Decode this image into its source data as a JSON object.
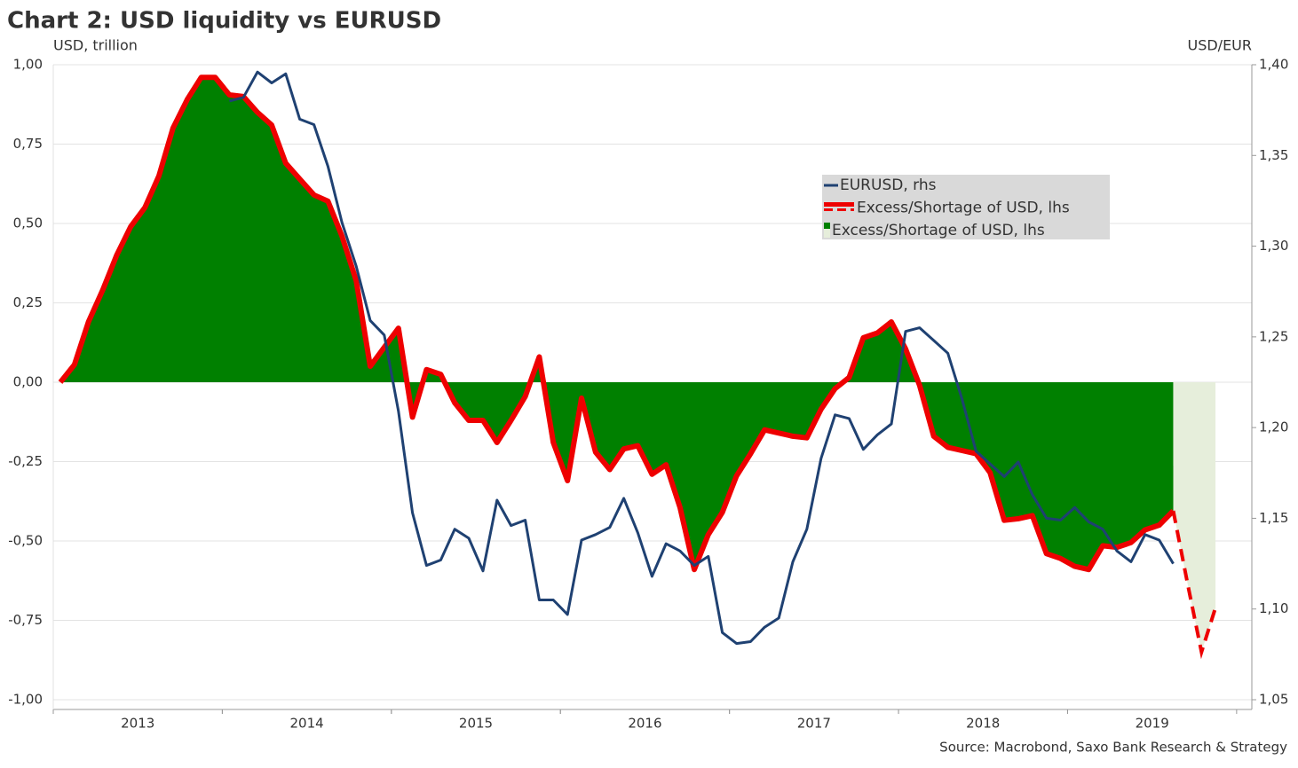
{
  "chart_data": {
    "type": "line",
    "title": "Chart 2: USD liquidity vs EURUSD",
    "y_label": "USD, trillion",
    "y2_label": "USD/EUR",
    "source": "Source: Macrobond, Saxo Bank Research & Strategy",
    "x": [
      2013.042,
      2013.125,
      2013.208,
      2013.292,
      2013.375,
      2013.458,
      2013.542,
      2013.625,
      2013.708,
      2013.792,
      2013.875,
      2013.958,
      2014.042,
      2014.125,
      2014.208,
      2014.292,
      2014.375,
      2014.458,
      2014.542,
      2014.625,
      2014.708,
      2014.792,
      2014.875,
      2014.958,
      2015.042,
      2015.125,
      2015.208,
      2015.292,
      2015.375,
      2015.458,
      2015.542,
      2015.625,
      2015.708,
      2015.792,
      2015.875,
      2015.958,
      2016.042,
      2016.125,
      2016.208,
      2016.292,
      2016.375,
      2016.458,
      2016.542,
      2016.625,
      2016.708,
      2016.792,
      2016.875,
      2016.958,
      2017.042,
      2017.125,
      2017.208,
      2017.292,
      2017.375,
      2017.458,
      2017.542,
      2017.625,
      2017.708,
      2017.792,
      2017.875,
      2017.958,
      2018.042,
      2018.125,
      2018.208,
      2018.292,
      2018.375,
      2018.458,
      2018.542,
      2018.625,
      2018.708,
      2018.792,
      2018.875,
      2018.958,
      2019.042,
      2019.125,
      2019.208,
      2019.292,
      2019.375,
      2019.458,
      2019.542,
      2019.625,
      2019.708,
      2019.792,
      2019.875
    ],
    "xlim": [
      2013,
      2020.09
    ],
    "xticks": [
      {
        "value": 2013.5,
        "label": "2013"
      },
      {
        "value": 2014.5,
        "label": "2014"
      },
      {
        "value": 2015.5,
        "label": "2015"
      },
      {
        "value": 2016.5,
        "label": "2016"
      },
      {
        "value": 2017.5,
        "label": "2017"
      },
      {
        "value": 2018.5,
        "label": "2018"
      },
      {
        "value": 2019.5,
        "label": "2019"
      }
    ],
    "ylim": [
      -1,
      1
    ],
    "yticks": [
      {
        "value": -1,
        "label": "-1,00"
      },
      {
        "value": -0.75,
        "label": "-0,75"
      },
      {
        "value": -0.5,
        "label": "-0,50"
      },
      {
        "value": -0.25,
        "label": "-0,25"
      },
      {
        "value": 0,
        "label": "0,00"
      },
      {
        "value": 0.25,
        "label": "0,25"
      },
      {
        "value": 0.5,
        "label": "0,50"
      },
      {
        "value": 0.75,
        "label": "0,75"
      },
      {
        "value": 1,
        "label": "1,00"
      }
    ],
    "y2lim": [
      1.05,
      1.4
    ],
    "y2ticks": [
      {
        "value": 1.05,
        "label": "1,05"
      },
      {
        "value": 1.1,
        "label": "1,10"
      },
      {
        "value": 1.15,
        "label": "1,15"
      },
      {
        "value": 1.2,
        "label": "1,20"
      },
      {
        "value": 1.25,
        "label": "1,25"
      },
      {
        "value": 1.3,
        "label": "1,30"
      },
      {
        "value": 1.35,
        "label": "1,35"
      },
      {
        "value": 1.4,
        "label": "1,40"
      }
    ],
    "grid": true,
    "series": [
      {
        "name": "EURUSD, rhs",
        "color": "#1f4172",
        "axis": "y2",
        "kind": "line",
        "values": [
          null,
          null,
          null,
          null,
          null,
          null,
          null,
          null,
          null,
          null,
          null,
          null,
          1.38,
          1.382,
          1.396,
          1.39,
          1.395,
          1.37,
          1.367,
          1.344,
          1.313,
          1.289,
          1.259,
          1.251,
          1.209,
          1.153,
          1.124,
          1.127,
          1.144,
          1.139,
          1.121,
          1.16,
          1.146,
          1.149,
          1.105,
          1.105,
          1.097,
          1.138,
          1.141,
          1.145,
          1.161,
          1.142,
          1.118,
          1.136,
          1.132,
          1.124,
          1.129,
          1.087,
          1.081,
          1.082,
          1.09,
          1.095,
          1.126,
          1.144,
          1.183,
          1.207,
          1.205,
          1.188,
          1.196,
          1.202,
          1.253,
          1.255,
          1.248,
          1.241,
          1.216,
          1.187,
          1.18,
          1.173,
          1.181,
          1.163,
          1.15,
          1.149,
          1.156,
          1.148,
          1.144,
          1.132,
          1.126,
          1.141,
          1.138,
          1.125,
          null,
          null,
          null
        ]
      },
      {
        "name": "Excess/Shortage of USD, lhs",
        "color": "#ee0000",
        "kind": "line",
        "forecast_from": 79,
        "values": [
          0,
          0.055,
          0.19,
          0.29,
          0.4,
          0.49,
          0.55,
          0.65,
          0.8,
          0.89,
          0.96,
          0.96,
          0.905,
          0.9,
          0.85,
          0.81,
          0.69,
          0.64,
          0.59,
          0.57,
          0.46,
          0.32,
          0.05,
          0.11,
          0.17,
          -0.11,
          0.04,
          0.025,
          -0.065,
          -0.12,
          -0.12,
          -0.19,
          -0.12,
          -0.045,
          0.08,
          -0.19,
          -0.31,
          -0.05,
          -0.22,
          -0.275,
          -0.21,
          -0.2,
          -0.29,
          -0.26,
          -0.395,
          -0.59,
          -0.48,
          -0.41,
          -0.295,
          -0.225,
          -0.15,
          -0.16,
          -0.17,
          -0.175,
          -0.085,
          -0.02,
          0.015,
          0.14,
          0.155,
          0.19,
          0.105,
          -0.01,
          -0.17,
          -0.205,
          -0.215,
          -0.225,
          -0.285,
          -0.435,
          -0.43,
          -0.42,
          -0.54,
          -0.555,
          -0.58,
          -0.59,
          -0.515,
          -0.52,
          -0.505,
          -0.465,
          -0.45,
          -0.405,
          -0.63,
          -0.85,
          -0.71
        ]
      },
      {
        "name": "Excess/Shortage of USD, lhs",
        "color": "#008000",
        "forecast_color": "#e6eedb",
        "kind": "area",
        "forecast_from": 79,
        "values": [
          0,
          0.055,
          0.19,
          0.29,
          0.4,
          0.49,
          0.55,
          0.65,
          0.8,
          0.89,
          0.96,
          0.96,
          0.905,
          0.9,
          0.85,
          0.81,
          0.69,
          0.64,
          0.59,
          0.57,
          0.46,
          0.32,
          0.05,
          0.11,
          0.17,
          -0.11,
          0.04,
          0.025,
          -0.065,
          -0.12,
          -0.12,
          -0.19,
          -0.12,
          -0.045,
          0.08,
          -0.19,
          -0.31,
          -0.05,
          -0.22,
          -0.275,
          -0.21,
          -0.2,
          -0.29,
          -0.26,
          -0.395,
          -0.59,
          -0.48,
          -0.41,
          -0.295,
          -0.225,
          -0.15,
          -0.16,
          -0.17,
          -0.175,
          -0.085,
          -0.02,
          0.015,
          0.14,
          0.155,
          0.19,
          0.105,
          -0.01,
          -0.17,
          -0.205,
          -0.215,
          -0.225,
          -0.285,
          -0.435,
          -0.43,
          -0.42,
          -0.54,
          -0.555,
          -0.58,
          -0.59,
          -0.515,
          -0.52,
          -0.505,
          -0.465,
          -0.45,
          -0.405,
          -0.63,
          -0.85,
          -0.71
        ]
      }
    ]
  }
}
